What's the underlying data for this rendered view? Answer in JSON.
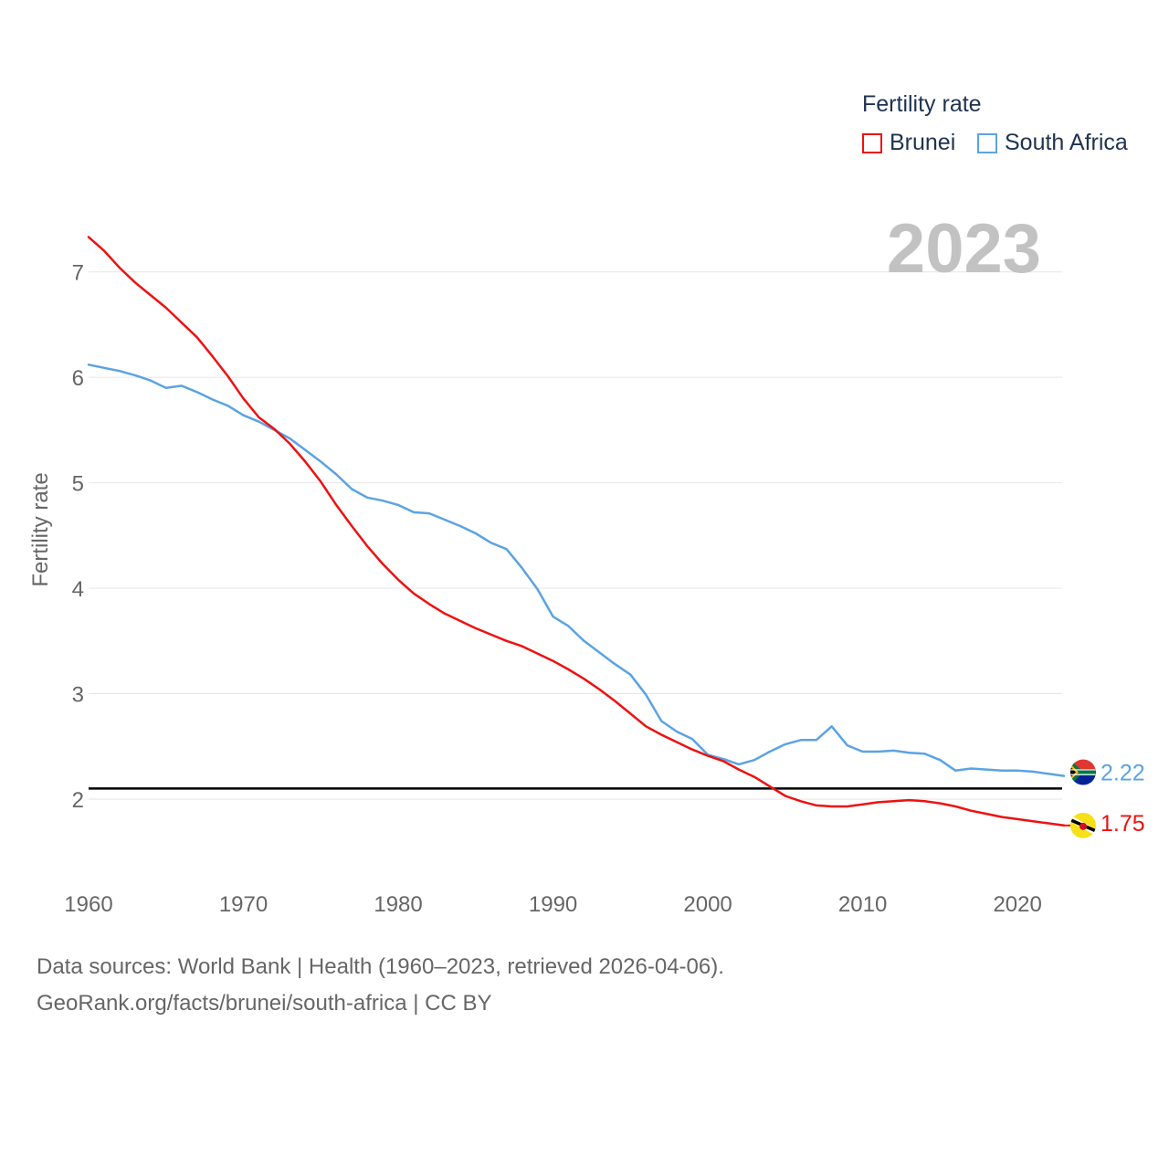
{
  "legend": {
    "title": "Fertility rate",
    "items": [
      {
        "label": "Brunei",
        "color": "#ee1111"
      },
      {
        "label": "South Africa",
        "color": "#5ba3e3"
      }
    ]
  },
  "year_label": "2023",
  "footer": {
    "line1": "Data sources: World Bank | Health (1960–2023, retrieved 2026-04-06).",
    "line2": "GeoRank.org/facts/brunei/south-africa | CC BY"
  },
  "end_labels": [
    {
      "name": "South Africa",
      "text": "2.22",
      "color": "#5ba3e3",
      "flag": "south-africa-flag-icon"
    },
    {
      "name": "Brunei",
      "text": "1.75",
      "color": "#ee1111",
      "flag": "brunei-flag-icon"
    }
  ],
  "chart_data": {
    "type": "line",
    "title": "Fertility rate",
    "xlabel": "",
    "ylabel": "Fertility rate",
    "xlim": [
      1960,
      2023
    ],
    "ylim": [
      1.35,
      7.5
    ],
    "x_ticks": [
      1960,
      1970,
      1980,
      1990,
      2000,
      2010,
      2020
    ],
    "y_ticks": [
      2,
      3,
      4,
      5,
      6,
      7
    ],
    "reference_line": 2.1,
    "grid": true,
    "legend_position": "top-right",
    "x": [
      1960,
      1961,
      1962,
      1963,
      1964,
      1965,
      1966,
      1967,
      1968,
      1969,
      1970,
      1971,
      1972,
      1973,
      1974,
      1975,
      1976,
      1977,
      1978,
      1979,
      1980,
      1981,
      1982,
      1983,
      1984,
      1985,
      1986,
      1987,
      1988,
      1989,
      1990,
      1991,
      1992,
      1993,
      1994,
      1995,
      1996,
      1997,
      1998,
      1999,
      2000,
      2001,
      2002,
      2003,
      2004,
      2005,
      2006,
      2007,
      2008,
      2009,
      2010,
      2011,
      2012,
      2013,
      2014,
      2015,
      2016,
      2017,
      2018,
      2019,
      2020,
      2021,
      2022,
      2023
    ],
    "series": [
      {
        "name": "Brunei",
        "color": "#ee1111",
        "values": [
          7.33,
          7.2,
          7.04,
          6.9,
          6.78,
          6.66,
          6.52,
          6.38,
          6.2,
          6.01,
          5.8,
          5.62,
          5.51,
          5.37,
          5.2,
          5.01,
          4.79,
          4.59,
          4.4,
          4.23,
          4.08,
          3.95,
          3.85,
          3.76,
          3.69,
          3.62,
          3.56,
          3.5,
          3.45,
          3.38,
          3.31,
          3.23,
          3.14,
          3.04,
          2.93,
          2.81,
          2.69,
          2.61,
          2.54,
          2.47,
          2.41,
          2.36,
          2.28,
          2.21,
          2.12,
          2.03,
          1.98,
          1.94,
          1.93,
          1.93,
          1.95,
          1.97,
          1.98,
          1.99,
          1.98,
          1.96,
          1.93,
          1.89,
          1.86,
          1.83,
          1.81,
          1.79,
          1.77,
          1.75
        ]
      },
      {
        "name": "South Africa",
        "color": "#5ba3e3",
        "values": [
          6.12,
          6.09,
          6.06,
          6.02,
          5.97,
          5.9,
          5.92,
          5.86,
          5.79,
          5.73,
          5.64,
          5.58,
          5.5,
          5.42,
          5.31,
          5.2,
          5.08,
          4.94,
          4.86,
          4.83,
          4.79,
          4.72,
          4.71,
          4.65,
          4.59,
          4.52,
          4.43,
          4.37,
          4.19,
          3.99,
          3.73,
          3.64,
          3.5,
          3.39,
          3.28,
          3.18,
          2.99,
          2.74,
          2.64,
          2.57,
          2.42,
          2.38,
          2.33,
          2.37,
          2.45,
          2.52,
          2.56,
          2.56,
          2.69,
          2.51,
          2.45,
          2.45,
          2.46,
          2.44,
          2.43,
          2.37,
          2.27,
          2.29,
          2.28,
          2.27,
          2.27,
          2.26,
          2.24,
          2.22
        ]
      }
    ]
  }
}
